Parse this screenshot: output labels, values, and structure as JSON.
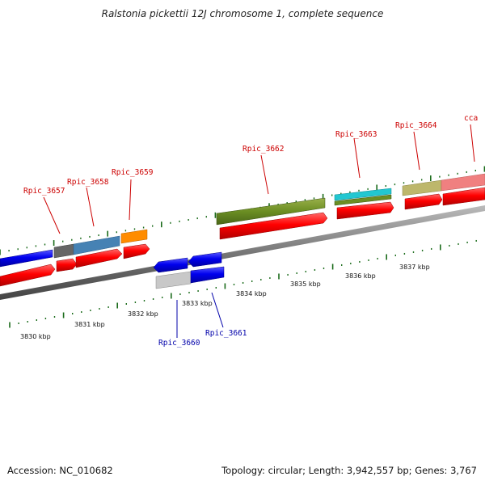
{
  "title": "Ralstonia pickettii 12J chromosome 1, complete sequence",
  "footer": {
    "accession": "Accession: NC_010682",
    "topology": "Topology: circular; Length: 3,942,557 bp; Genes: 3,767"
  },
  "axis_labels": [
    "3830 kbp",
    "3831 kbp",
    "3832 kbp",
    "3833 kbp",
    "3834 kbp",
    "3835 kbp",
    "3836 kbp",
    "3837 kbp"
  ],
  "genes_forward": [
    "Rpic_3657",
    "Rpic_3658",
    "Rpic_3659",
    "Rpic_3662",
    "Rpic_3663",
    "Rpic_3664",
    "cca"
  ],
  "genes_reverse": [
    "Rpic_3660",
    "Rpic_3661"
  ],
  "colors": {
    "forward_label": "#cc0000",
    "reverse_label": "#0000aa",
    "cds": "#ff0000",
    "reverse_feature": "#0000ee",
    "backbone": "#777777",
    "tick": "#1a6b1a"
  }
}
